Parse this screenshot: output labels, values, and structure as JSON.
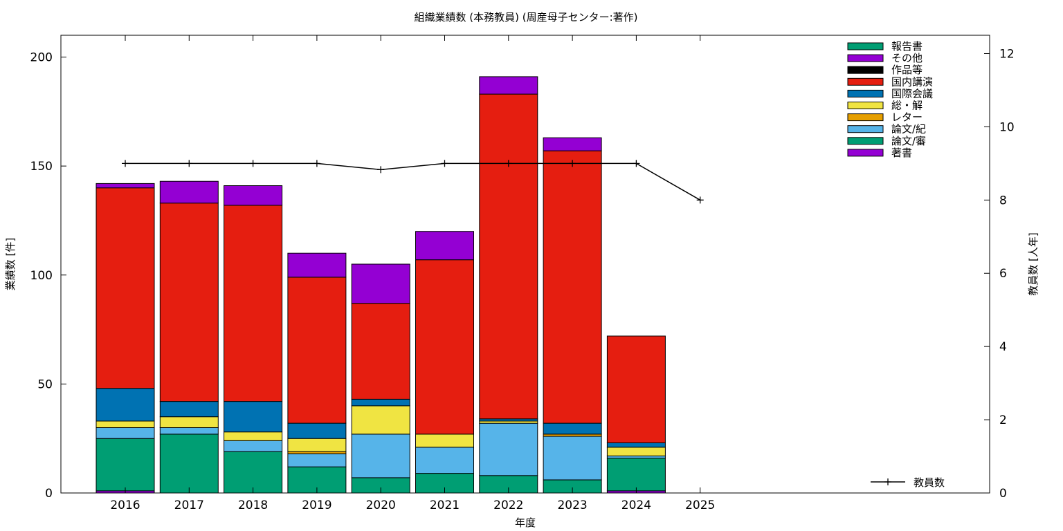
{
  "chart_data": {
    "type": "bar",
    "title": "組織業績数 (本務教員) (周産母子センター:著作)",
    "xlabel": "年度",
    "ylabel": "業績数 [件]",
    "y2label": "教員数 [人年]",
    "categories": [
      "2016",
      "2017",
      "2018",
      "2019",
      "2020",
      "2021",
      "2022",
      "2023",
      "2024",
      "2025"
    ],
    "ylim": [
      0,
      210
    ],
    "yticks": [
      0,
      50,
      100,
      150,
      200
    ],
    "y2lim": [
      0,
      12.5
    ],
    "y2ticks": [
      0,
      2,
      4,
      6,
      8,
      10,
      12
    ],
    "grid": false,
    "legend_position": "top-right",
    "stack_order_bottom_to_top": [
      "著書",
      "論文/審",
      "論文/紀",
      "レター",
      "総・解",
      "国際会議",
      "国内講演",
      "作品等",
      "その他",
      "報告書"
    ],
    "legend_order": [
      "報告書",
      "その他",
      "作品等",
      "国内講演",
      "国際会議",
      "総・解",
      "レター",
      "論文/紀",
      "論文/審",
      "著書"
    ],
    "series": [
      {
        "name": "著書",
        "color": "#9400d3",
        "values": [
          1,
          0,
          0,
          0,
          0,
          0,
          0,
          0,
          1,
          0
        ]
      },
      {
        "name": "論文/審",
        "color": "#009e73",
        "values": [
          24,
          27,
          19,
          12,
          7,
          9,
          8,
          6,
          15,
          0
        ]
      },
      {
        "name": "論文/紀",
        "color": "#56b4e9",
        "values": [
          5,
          3,
          5,
          6,
          20,
          12,
          24,
          20,
          1,
          0
        ]
      },
      {
        "name": "レター",
        "color": "#e69f00",
        "values": [
          0,
          0,
          0,
          1,
          0,
          0,
          0,
          1,
          0,
          0
        ]
      },
      {
        "name": "総・解",
        "color": "#f0e442",
        "values": [
          3,
          5,
          4,
          6,
          13,
          6,
          1,
          0,
          4,
          0
        ]
      },
      {
        "name": "国際会議",
        "color": "#0072b2",
        "values": [
          15,
          7,
          14,
          7,
          3,
          0,
          1,
          5,
          2,
          0
        ]
      },
      {
        "name": "国内講演",
        "color": "#e51e10",
        "values": [
          92,
          91,
          90,
          67,
          44,
          80,
          149,
          125,
          49,
          0
        ]
      },
      {
        "name": "作品等",
        "color": "#000000",
        "values": [
          0,
          0,
          0,
          0,
          0,
          0,
          0,
          0,
          0,
          0
        ]
      },
      {
        "name": "その他",
        "color": "#9400d3",
        "values": [
          2,
          10,
          9,
          11,
          18,
          13,
          8,
          6,
          0,
          0
        ]
      },
      {
        "name": "報告書",
        "color": "#009e73",
        "values": [
          0,
          0,
          0,
          0,
          0,
          0,
          0,
          0,
          0,
          0
        ]
      }
    ],
    "line_series": {
      "name": "教員数",
      "color": "#000000",
      "axis": "y2",
      "values": [
        9,
        9,
        9,
        9,
        8.83,
        9,
        9,
        9,
        9,
        8
      ]
    }
  }
}
